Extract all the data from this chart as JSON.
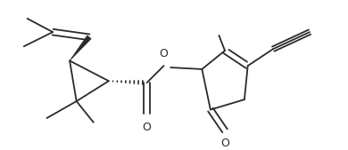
{
  "background_color": "#ffffff",
  "line_color": "#2a2a2a",
  "line_width": 1.3,
  "figsize": [
    3.9,
    1.69
  ],
  "dpi": 100,
  "xlim": [
    0,
    390
  ],
  "ylim": [
    0,
    169
  ]
}
